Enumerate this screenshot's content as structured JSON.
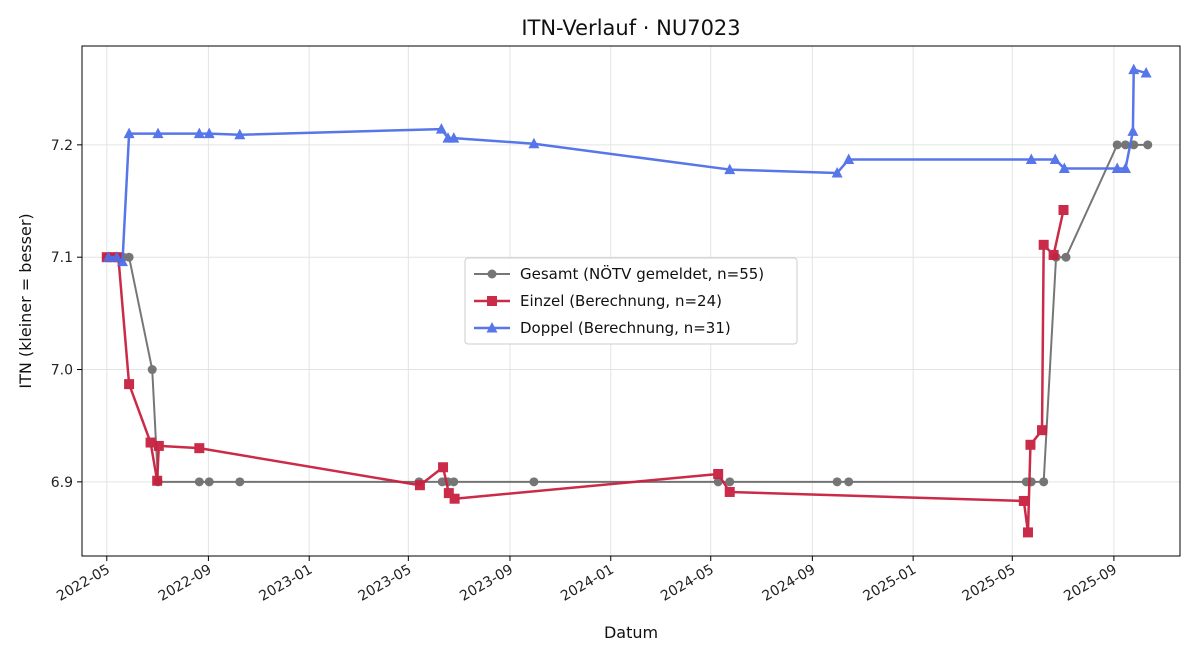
{
  "chart_data": {
    "type": "line",
    "title": "ITN-Verlauf · NU7023",
    "xlabel": "Datum",
    "ylabel": "ITN  (kleiner = besser)",
    "x_axis_type": "date",
    "xlim": [
      "2022-04-01",
      "2025-11-20"
    ],
    "ylim": [
      6.834,
      7.288
    ],
    "x_ticks": [
      "2022-05-01",
      "2022-09-01",
      "2023-01-01",
      "2023-05-01",
      "2023-09-01",
      "2024-01-01",
      "2024-05-01",
      "2024-09-01",
      "2025-01-01",
      "2025-05-01",
      "2025-09-01"
    ],
    "x_tick_labels": [
      "2022-05",
      "2022-09",
      "2023-01",
      "2023-05",
      "2023-09",
      "2024-01",
      "2024-05",
      "2024-09",
      "2025-01",
      "2025-05",
      "2025-09"
    ],
    "y_ticks": [
      6.9,
      7.0,
      7.1,
      7.2
    ],
    "y_tick_labels": [
      "6.9",
      "7.0",
      "7.1",
      "7.2"
    ],
    "grid": true,
    "legend_position": "center",
    "series": [
      {
        "name": "Gesamt (NÖTV gemeldet, n=55)",
        "color": "#555555",
        "marker": "circle",
        "points": [
          {
            "x": "2022-05-01",
            "y": 7.1
          },
          {
            "x": "2022-05-08",
            "y": 7.1
          },
          {
            "x": "2022-05-15",
            "y": 7.1
          },
          {
            "x": "2022-05-21",
            "y": 7.1
          },
          {
            "x": "2022-05-28",
            "y": 7.1
          },
          {
            "x": "2022-06-25",
            "y": 7.0
          },
          {
            "x": "2022-07-02",
            "y": 6.9
          },
          {
            "x": "2022-08-21",
            "y": 6.9
          },
          {
            "x": "2022-09-02",
            "y": 6.9
          },
          {
            "x": "2022-10-09",
            "y": 6.9
          },
          {
            "x": "2023-05-14",
            "y": 6.9
          },
          {
            "x": "2023-06-11",
            "y": 6.9
          },
          {
            "x": "2023-06-18",
            "y": 6.9
          },
          {
            "x": "2023-06-25",
            "y": 6.9
          },
          {
            "x": "2023-09-30",
            "y": 6.9
          },
          {
            "x": "2024-05-10",
            "y": 6.9
          },
          {
            "x": "2024-05-24",
            "y": 6.9
          },
          {
            "x": "2024-10-01",
            "y": 6.9
          },
          {
            "x": "2024-10-15",
            "y": 6.9
          },
          {
            "x": "2025-05-18",
            "y": 6.9
          },
          {
            "x": "2025-05-24",
            "y": 6.9
          },
          {
            "x": "2025-06-08",
            "y": 6.9
          },
          {
            "x": "2025-06-23",
            "y": 7.1
          },
          {
            "x": "2025-07-05",
            "y": 7.1
          },
          {
            "x": "2025-09-05",
            "y": 7.2
          },
          {
            "x": "2025-09-15",
            "y": 7.2
          },
          {
            "x": "2025-09-25",
            "y": 7.2
          },
          {
            "x": "2025-10-12",
            "y": 7.2
          }
        ]
      },
      {
        "name": "Einzel (Berechnung, n=24)",
        "color": "#c8203f",
        "marker": "square",
        "points": [
          {
            "x": "2022-05-01",
            "y": 7.1
          },
          {
            "x": "2022-05-08",
            "y": 7.1
          },
          {
            "x": "2022-05-15",
            "y": 7.1
          },
          {
            "x": "2022-05-28",
            "y": 6.987
          },
          {
            "x": "2022-06-23",
            "y": 6.935
          },
          {
            "x": "2022-07-01",
            "y": 6.901
          },
          {
            "x": "2022-07-03",
            "y": 6.932
          },
          {
            "x": "2022-08-21",
            "y": 6.93
          },
          {
            "x": "2023-05-15",
            "y": 6.897
          },
          {
            "x": "2023-06-12",
            "y": 6.913
          },
          {
            "x": "2023-06-19",
            "y": 6.89
          },
          {
            "x": "2023-06-26",
            "y": 6.885
          },
          {
            "x": "2024-05-10",
            "y": 6.907
          },
          {
            "x": "2024-05-24",
            "y": 6.891
          },
          {
            "x": "2025-05-15",
            "y": 6.883
          },
          {
            "x": "2025-05-20",
            "y": 6.855
          },
          {
            "x": "2025-05-23",
            "y": 6.933
          },
          {
            "x": "2025-06-06",
            "y": 6.946
          },
          {
            "x": "2025-06-08",
            "y": 7.111
          },
          {
            "x": "2025-06-20",
            "y": 7.102
          },
          {
            "x": "2025-07-02",
            "y": 7.142
          }
        ]
      },
      {
        "name": "Doppel (Berechnung, n=31)",
        "color": "#4f6fe8",
        "marker": "triangle",
        "points": [
          {
            "x": "2022-05-03",
            "y": 7.1
          },
          {
            "x": "2022-05-13",
            "y": 7.1
          },
          {
            "x": "2022-05-20",
            "y": 7.096
          },
          {
            "x": "2022-05-28",
            "y": 7.21
          },
          {
            "x": "2022-07-02",
            "y": 7.21
          },
          {
            "x": "2022-08-21",
            "y": 7.21
          },
          {
            "x": "2022-09-02",
            "y": 7.21
          },
          {
            "x": "2022-10-09",
            "y": 7.209
          },
          {
            "x": "2023-06-10",
            "y": 7.214
          },
          {
            "x": "2023-06-18",
            "y": 7.206
          },
          {
            "x": "2023-06-25",
            "y": 7.206
          },
          {
            "x": "2023-09-30",
            "y": 7.201
          },
          {
            "x": "2024-05-24",
            "y": 7.178
          },
          {
            "x": "2024-10-01",
            "y": 7.175
          },
          {
            "x": "2024-10-15",
            "y": 7.187
          },
          {
            "x": "2025-05-24",
            "y": 7.187
          },
          {
            "x": "2025-06-22",
            "y": 7.187
          },
          {
            "x": "2025-07-03",
            "y": 7.179
          },
          {
            "x": "2025-09-05",
            "y": 7.179
          },
          {
            "x": "2025-09-15",
            "y": 7.179
          },
          {
            "x": "2025-09-24",
            "y": 7.212
          },
          {
            "x": "2025-09-25",
            "y": 7.267
          },
          {
            "x": "2025-10-10",
            "y": 7.264
          }
        ]
      }
    ]
  }
}
